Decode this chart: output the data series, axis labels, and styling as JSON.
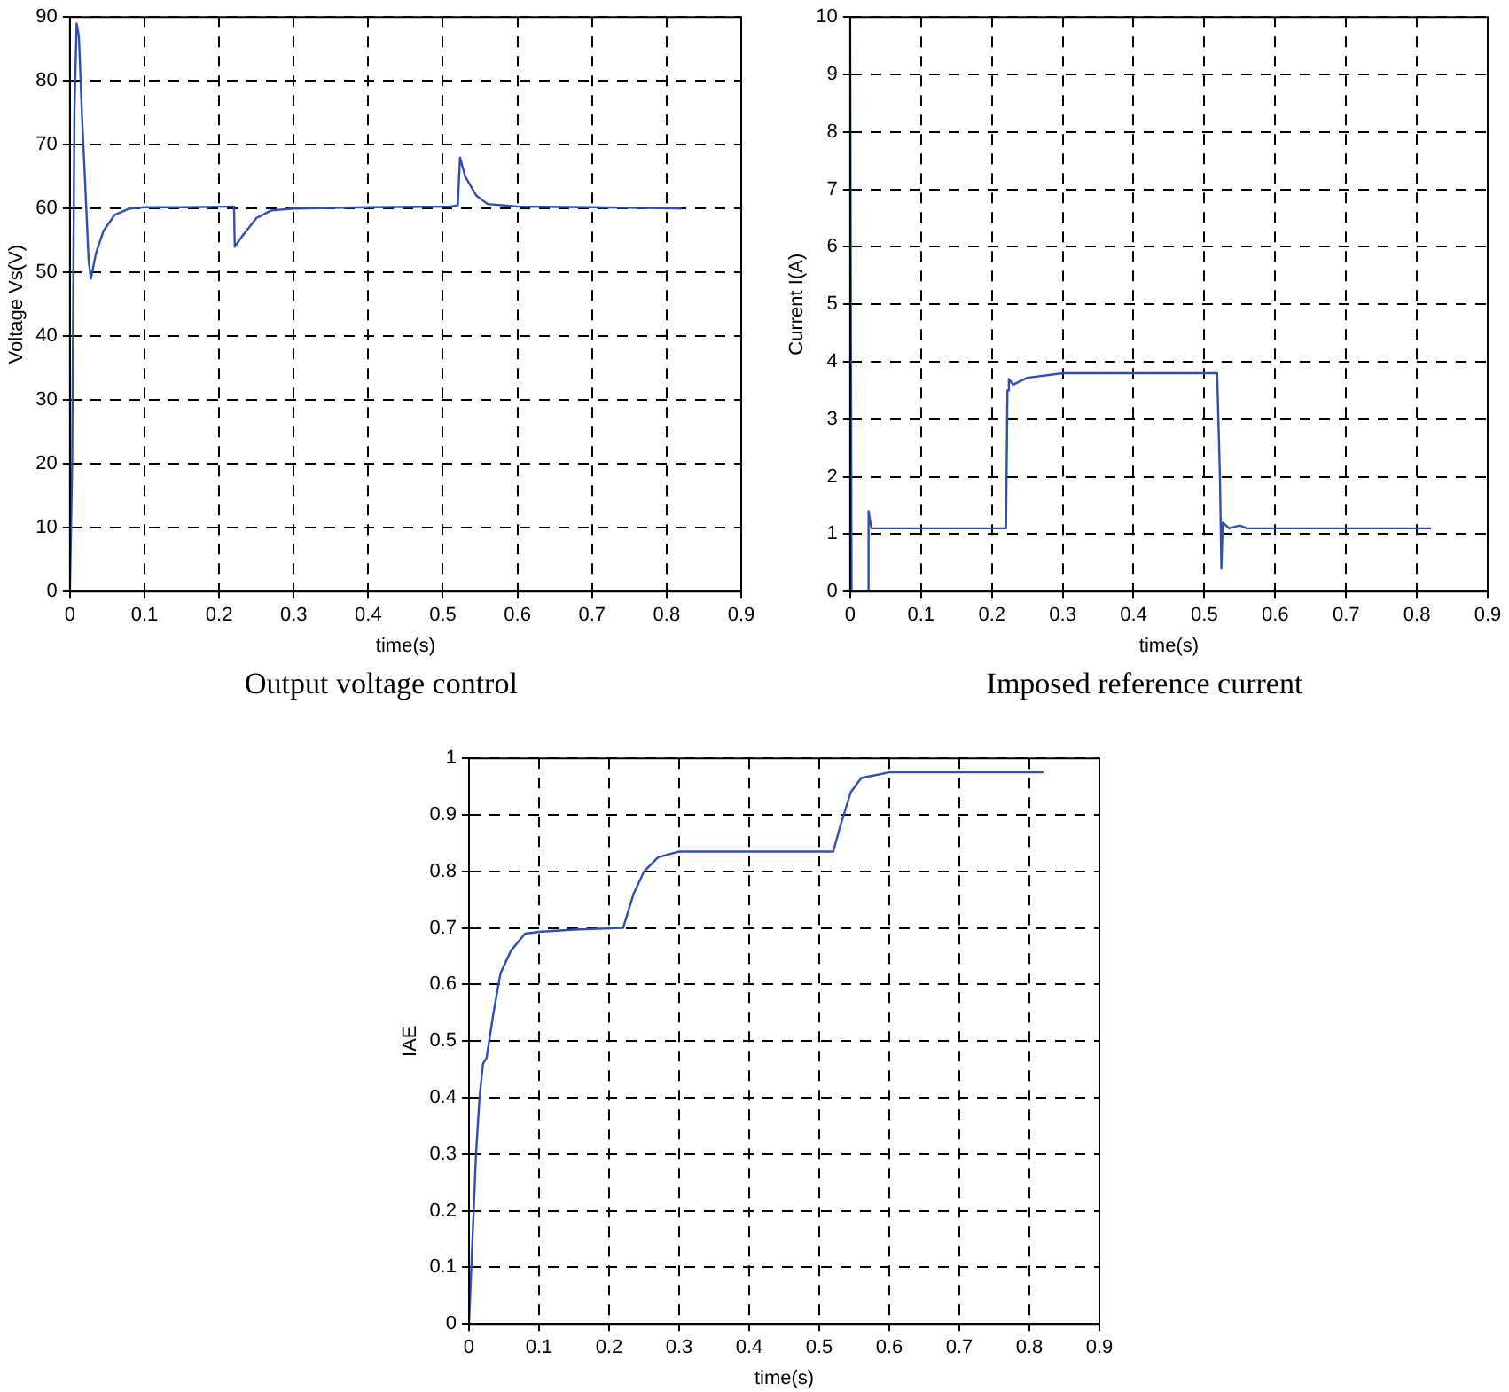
{
  "chart_data": [
    {
      "type": "line",
      "title": "Output voltage control",
      "xlabel": "time(s)",
      "ylabel": "Voltage Vs(V)",
      "color": "#2f4fb0",
      "marker": "none",
      "grid": true,
      "xlim": [
        0,
        0.9
      ],
      "ylim": [
        0,
        90
      ],
      "xticks": [
        0,
        0.1,
        0.2,
        0.3,
        0.4,
        0.5,
        0.6,
        0.7,
        0.8,
        0.9
      ],
      "yticks": [
        0,
        10,
        20,
        30,
        40,
        50,
        60,
        70,
        80,
        90
      ],
      "x": [
        0,
        0.003,
        0.006,
        0.009,
        0.012,
        0.016,
        0.02,
        0.025,
        0.028,
        0.035,
        0.045,
        0.06,
        0.08,
        0.1,
        0.15,
        0.22,
        0.221,
        0.23,
        0.25,
        0.27,
        0.3,
        0.4,
        0.51,
        0.52,
        0.523,
        0.53,
        0.545,
        0.56,
        0.6,
        0.7,
        0.82
      ],
      "values": [
        0,
        20,
        75,
        89,
        87,
        75,
        65,
        52,
        49,
        53,
        56.5,
        59,
        60,
        60.2,
        60.2,
        60.3,
        54,
        55.5,
        58.5,
        59.7,
        60,
        60.2,
        60.3,
        60.5,
        68,
        65,
        62,
        60.7,
        60.3,
        60.2,
        60
      ]
    },
    {
      "type": "line",
      "title": "Imposed reference current",
      "xlabel": "time(s)",
      "ylabel": "Current I(A)",
      "color": "#2f4fb0",
      "marker": "none",
      "grid": true,
      "xlim": [
        0,
        0.9
      ],
      "ylim": [
        0,
        10
      ],
      "xticks": [
        0,
        0.1,
        0.2,
        0.3,
        0.4,
        0.5,
        0.6,
        0.7,
        0.8,
        0.9
      ],
      "yticks": [
        0,
        1,
        2,
        3,
        4,
        5,
        6,
        7,
        8,
        9,
        10
      ],
      "x": [
        0,
        0.002,
        0.024,
        0.026,
        0.03,
        0.05,
        0.22,
        0.222,
        0.224,
        0.23,
        0.25,
        0.3,
        0.518,
        0.522,
        0.524,
        0.526,
        0.535,
        0.55,
        0.56,
        0.82
      ],
      "values": [
        10,
        0,
        0,
        1.4,
        1.1,
        1.1,
        1.1,
        3.5,
        3.7,
        3.6,
        3.72,
        3.8,
        3.8,
        2,
        0.4,
        1.2,
        1.1,
        1.15,
        1.1,
        1.1
      ]
    },
    {
      "type": "line",
      "xlabel": "time(s)",
      "ylabel": "IAE",
      "color": "#2f4fb0",
      "marker": "none",
      "grid": true,
      "xlim": [
        0,
        0.9
      ],
      "ylim": [
        0,
        1
      ],
      "xticks": [
        0,
        0.1,
        0.2,
        0.3,
        0.4,
        0.5,
        0.6,
        0.7,
        0.8,
        0.9
      ],
      "yticks": [
        0,
        0.1,
        0.2,
        0.3,
        0.4,
        0.5,
        0.6,
        0.7,
        0.8,
        0.9,
        1
      ],
      "x": [
        0,
        0.005,
        0.01,
        0.015,
        0.02,
        0.025,
        0.035,
        0.045,
        0.06,
        0.08,
        0.1,
        0.15,
        0.22,
        0.235,
        0.25,
        0.27,
        0.3,
        0.52,
        0.53,
        0.545,
        0.56,
        0.6,
        0.82
      ],
      "values": [
        0,
        0.15,
        0.3,
        0.4,
        0.46,
        0.47,
        0.55,
        0.62,
        0.66,
        0.69,
        0.693,
        0.697,
        0.7,
        0.76,
        0.8,
        0.825,
        0.835,
        0.835,
        0.88,
        0.94,
        0.965,
        0.975,
        0.975
      ]
    }
  ]
}
